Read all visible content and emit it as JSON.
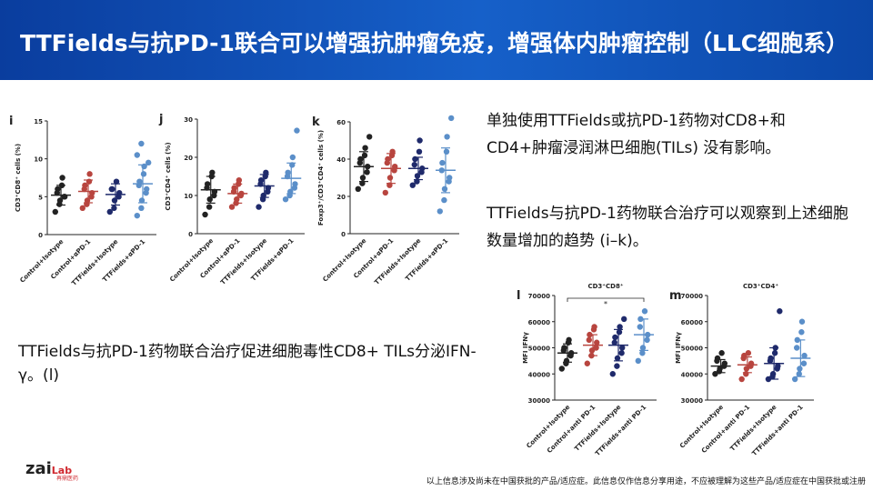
{
  "header": {
    "title": "TTFields与抗PD-1联合可以增强抗肿瘤免疫，增强体内肿瘤控制（LLC细胞系）"
  },
  "text": {
    "point1": "单独使用TTFields或抗PD-1药物对CD8+和CD4+肿瘤浸润淋巴细胞(TILs) 没有影响。",
    "point2": "TTFields与抗PD-1药物联合治疗可以观察到上述细胞数量增加的趋势 (i–k)。",
    "point3": "TTFields与抗PD-1药物联合治疗促进细胞毒性CD8+ TILs分泌IFN-γ。(l)"
  },
  "logo": {
    "brand": "zai",
    "lab": "Lab",
    "cn": "再鼎医药"
  },
  "footer": "以上信息涉及尚未在中国获批的产品/适应症。此信息仅作信息分享用途，不应被理解为这些产品/适应症在中国获批或注册",
  "chart_data": [
    {
      "type": "dot",
      "label": "i",
      "ylabel": "CD3⁺CD8⁺ cells (%)",
      "categories": [
        "Control+Isotype",
        "Control+αPD-1",
        "TTFields+Isotype",
        "TTFields+αPD-1"
      ],
      "colors": [
        "#222222",
        "#b8453f",
        "#1f2a6b",
        "#5b8fc9"
      ],
      "values": [
        [
          3,
          4,
          4.5,
          5,
          5,
          5.5,
          6,
          6.5,
          7.5
        ],
        [
          3.5,
          4,
          4.5,
          5,
          5.5,
          6,
          6.5,
          7,
          8
        ],
        [
          3,
          3.5,
          4.5,
          5,
          5.5,
          6,
          6,
          7
        ],
        [
          2.5,
          3.5,
          4.5,
          5.5,
          6,
          6.5,
          7,
          8,
          9,
          9.5,
          10.5,
          12
        ]
      ],
      "means": [
        5.2,
        5.7,
        5.3,
        6.7
      ],
      "sds": [
        1.3,
        1.5,
        1.4,
        2.5
      ],
      "ylim": [
        0,
        15
      ],
      "yticks": [
        0,
        5,
        10,
        15
      ]
    },
    {
      "type": "dot",
      "label": "j",
      "ylabel": "CD3⁺CD4⁺ cells (%)",
      "categories": [
        "Control+Isotype",
        "Control+αPD-1",
        "TTFields+Isotype",
        "TTFields+αPD-1"
      ],
      "colors": [
        "#222222",
        "#b8453f",
        "#1f2a6b",
        "#5b8fc9"
      ],
      "values": [
        [
          5,
          7,
          9,
          10,
          11,
          12,
          13,
          15,
          16
        ],
        [
          7,
          8,
          9,
          10,
          10.5,
          11,
          12,
          13,
          14
        ],
        [
          7,
          9,
          10,
          11,
          12,
          13,
          14,
          15,
          16
        ],
        [
          9,
          10,
          11,
          12,
          13,
          15,
          16,
          18,
          20,
          27
        ]
      ],
      "means": [
        11.5,
        10.5,
        12.5,
        14.5
      ],
      "sds": [
        3.5,
        2.5,
        3,
        4
      ],
      "ylim": [
        0,
        30
      ],
      "yticks": [
        0,
        10,
        20,
        30
      ]
    },
    {
      "type": "dot",
      "label": "k",
      "ylabel": "Foxp3⁺/CD3⁺CD4⁺ cells (%)",
      "categories": [
        "Control+Isotype",
        "Control+αPD-1",
        "TTFields+Isotype",
        "TTFields+αPD-1"
      ],
      "colors": [
        "#222222",
        "#b8453f",
        "#1f2a6b",
        "#5b8fc9"
      ],
      "values": [
        [
          24,
          27,
          30,
          33,
          36,
          38,
          40,
          42,
          46,
          52
        ],
        [
          22,
          26,
          30,
          34,
          36,
          38,
          40,
          42,
          44
        ],
        [
          26,
          28,
          31,
          33,
          35,
          37,
          40,
          44,
          50
        ],
        [
          12,
          18,
          24,
          28,
          30,
          34,
          38,
          44,
          52,
          62
        ]
      ],
      "means": [
        36,
        35,
        35,
        34
      ],
      "sds": [
        8,
        8,
        6,
        12
      ],
      "ylim": [
        0,
        60
      ],
      "yticks": [
        0,
        20,
        40,
        60
      ]
    },
    {
      "type": "dot",
      "label": "l",
      "title": "CD3⁺CD8⁺",
      "ylabel": "MFI IFNγ",
      "annotation": "*",
      "categories": [
        "Control+Isotype",
        "Control+anti PD-1",
        "TTFields+Isotype",
        "TTFields+anti PD-1"
      ],
      "colors": [
        "#222222",
        "#b8453f",
        "#1f2a6b",
        "#5b8fc9"
      ],
      "values": [
        [
          42000,
          44000,
          45000,
          47000,
          48000,
          49000,
          50000,
          52000,
          53000
        ],
        [
          44000,
          47000,
          49000,
          50000,
          52000,
          53000,
          55000,
          57000,
          58000
        ],
        [
          40000,
          43000,
          46000,
          48000,
          50000,
          52000,
          54000,
          56000,
          58000,
          61000
        ],
        [
          45000,
          48000,
          50000,
          53000,
          55000,
          58000,
          61000,
          64000
        ]
      ],
      "means": [
        48000,
        51000,
        51000,
        55000
      ],
      "sds": [
        3500,
        4000,
        6000,
        6000
      ],
      "ylim": [
        30000,
        70000
      ],
      "yticks": [
        30000,
        40000,
        50000,
        60000,
        70000
      ]
    },
    {
      "type": "dot",
      "label": "m",
      "title": "CD3⁺CD4⁺",
      "ylabel": "MFI IFNγ",
      "categories": [
        "Control+Isotype",
        "Control+anti PD-1",
        "TTFields+Isotype",
        "TTFields+anti PD-1"
      ],
      "colors": [
        "#222222",
        "#b8453f",
        "#1f2a6b",
        "#5b8fc9"
      ],
      "values": [
        [
          40000,
          41000,
          42000,
          43000,
          44000,
          45000,
          46000,
          48000
        ],
        [
          38000,
          40000,
          42000,
          43000,
          44000,
          46000,
          47000,
          48000
        ],
        [
          38000,
          39000,
          40000,
          42000,
          43000,
          45000,
          46000,
          48000,
          50000,
          64000
        ],
        [
          38000,
          40000,
          42000,
          44000,
          47000,
          50000,
          53000,
          56000,
          60000
        ]
      ],
      "means": [
        43000,
        43500,
        44000,
        46000
      ],
      "sds": [
        2500,
        3000,
        6000,
        7000
      ],
      "ylim": [
        30000,
        70000
      ],
      "yticks": [
        30000,
        40000,
        50000,
        60000,
        70000
      ]
    }
  ]
}
